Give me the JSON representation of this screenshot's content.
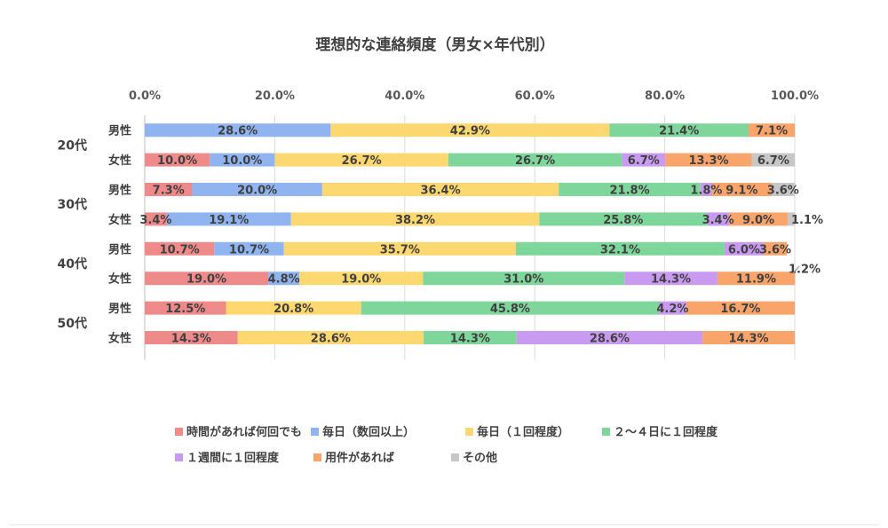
{
  "chart_data": {
    "type": "bar",
    "stacked": true,
    "orientation": "horizontal",
    "title": "理想的な連絡頻度（男女×年代別）",
    "xlim": [
      0,
      100
    ],
    "x_ticks": [
      "0.0%",
      "20.0%",
      "40.0%",
      "60.0%",
      "80.0%",
      "100.0%"
    ],
    "grid": true,
    "legend_position": "bottom",
    "groups": [
      "20代",
      "30代",
      "40代",
      "50代"
    ],
    "categories": [
      {
        "group": "20代",
        "label": "男性"
      },
      {
        "group": "20代",
        "label": "女性"
      },
      {
        "group": "30代",
        "label": "男性"
      },
      {
        "group": "30代",
        "label": "女性"
      },
      {
        "group": "40代",
        "label": "男性"
      },
      {
        "group": "40代",
        "label": "女性"
      },
      {
        "group": "50代",
        "label": "男性"
      },
      {
        "group": "50代",
        "label": "女性"
      }
    ],
    "series": [
      {
        "name": "時間があれば何回でも",
        "color": "#ef8a8a",
        "values": [
          0,
          10.0,
          7.3,
          3.4,
          10.7,
          19.0,
          12.5,
          14.3
        ],
        "labels": [
          "",
          "10.0%",
          "7.3%",
          "3.4%",
          "10.7%",
          "19.0%",
          "12.5%",
          "14.3%"
        ]
      },
      {
        "name": "毎日（数回以上）",
        "color": "#8fb4ef",
        "values": [
          28.6,
          10.0,
          20.0,
          19.1,
          10.7,
          4.8,
          0,
          0
        ],
        "labels": [
          "28.6%",
          "10.0%",
          "20.0%",
          "19.1%",
          "10.7%",
          "4.8%",
          "",
          ""
        ]
      },
      {
        "name": "毎日（１回程度）",
        "color": "#fdd870",
        "values": [
          42.9,
          26.7,
          36.4,
          38.2,
          35.7,
          19.0,
          20.8,
          28.6
        ],
        "labels": [
          "42.9%",
          "26.7%",
          "36.4%",
          "38.2%",
          "35.7%",
          "19.0%",
          "20.8%",
          "28.6%"
        ]
      },
      {
        "name": "２～４日に１回程度",
        "color": "#7ed69a",
        "values": [
          21.4,
          26.7,
          21.8,
          25.8,
          32.1,
          31.0,
          45.8,
          14.3
        ],
        "labels": [
          "21.4%",
          "26.7%",
          "21.8%",
          "25.8%",
          "32.1%",
          "31.0%",
          "45.8%",
          "14.3%"
        ]
      },
      {
        "name": "１週間に１回程度",
        "color": "#c89af0",
        "values": [
          0,
          6.7,
          1.8,
          3.4,
          6.0,
          14.3,
          4.2,
          28.6
        ],
        "labels": [
          "",
          "6.7%",
          "1.8%",
          "3.4%",
          "6.0%",
          "14.3%",
          "4.2%",
          "28.6%"
        ]
      },
      {
        "name": "用件があれば",
        "color": "#f8a46a",
        "values": [
          7.1,
          13.3,
          9.1,
          9.0,
          3.6,
          11.9,
          16.7,
          14.3
        ],
        "labels": [
          "7.1%",
          "13.3%",
          "9.1%",
          "9.0%",
          "3.6%",
          "11.9%",
          "16.7%",
          "14.3%"
        ]
      },
      {
        "name": "その他",
        "color": "#c7c7c7",
        "values": [
          0,
          6.7,
          3.6,
          1.1,
          0,
          1.2,
          0,
          0
        ],
        "labels": [
          "",
          "6.7%",
          "3.6%",
          "1.1%",
          "",
          "1.2%",
          "",
          ""
        ]
      }
    ]
  }
}
